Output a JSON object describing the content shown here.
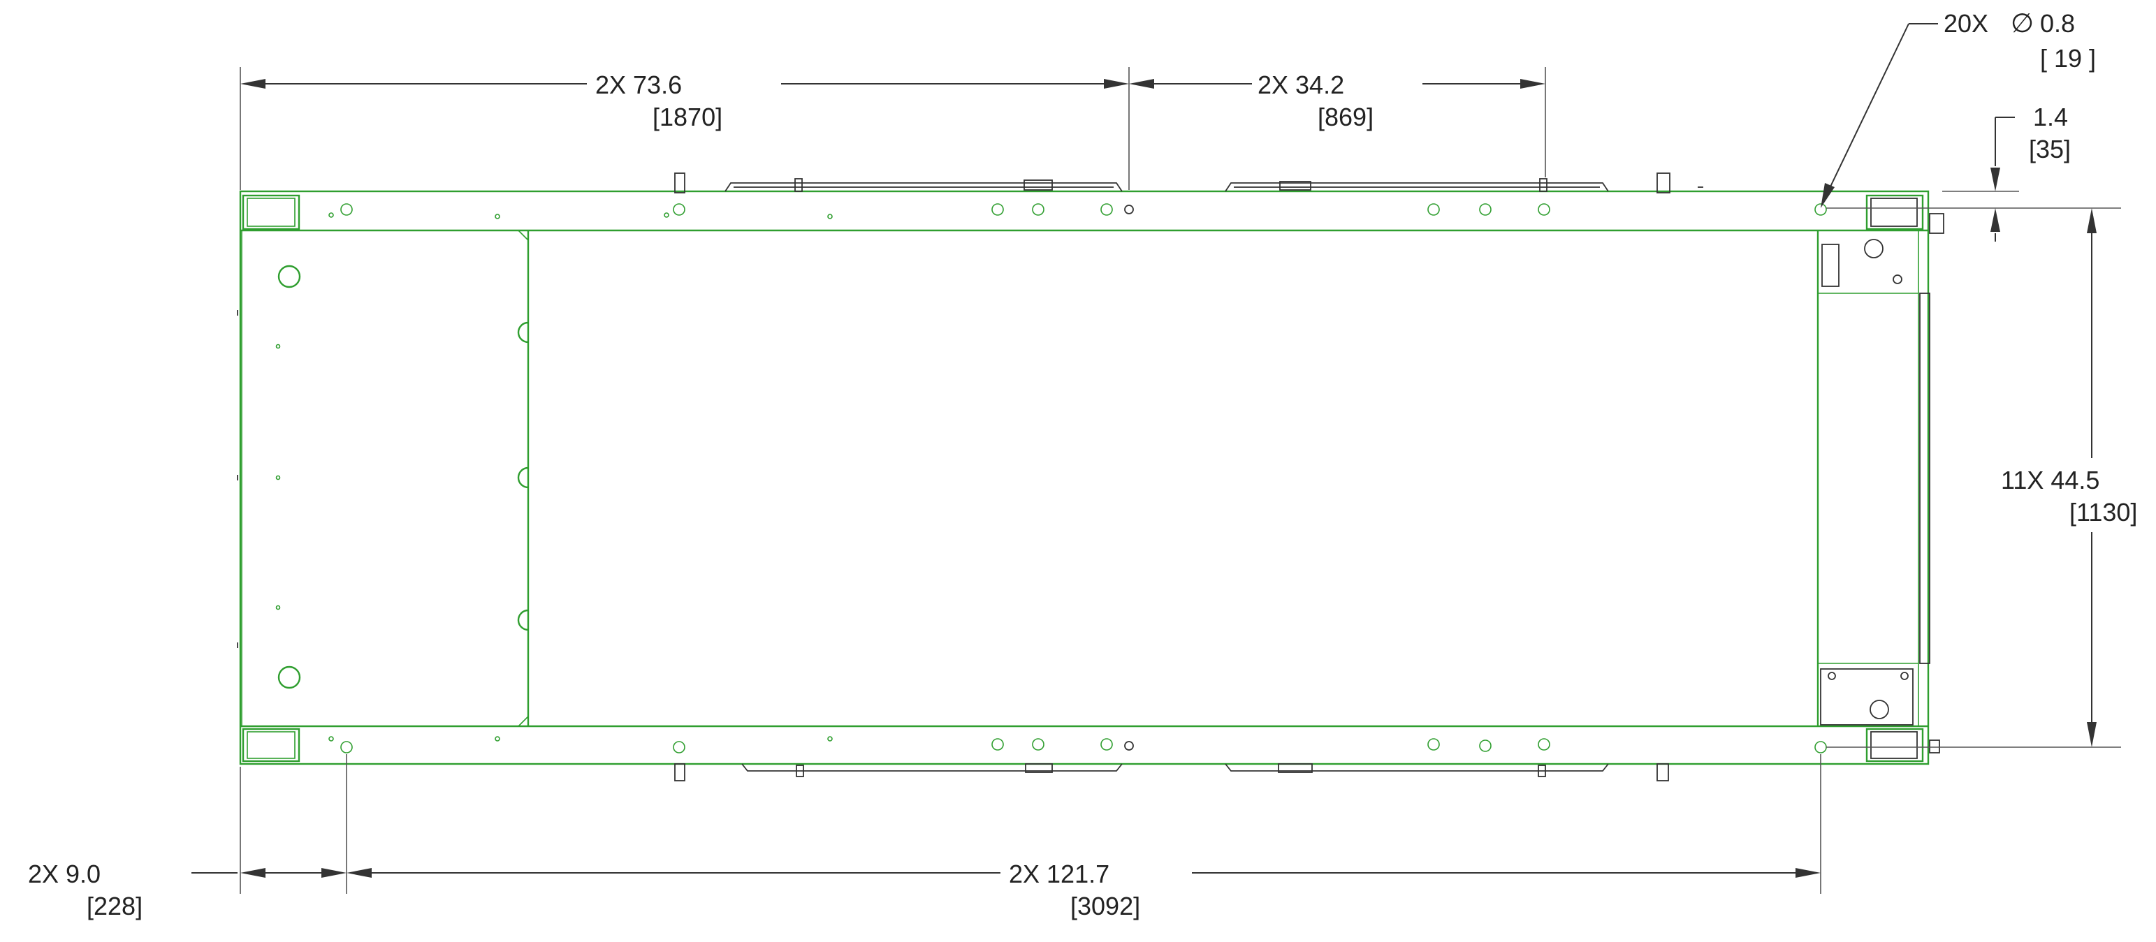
{
  "dimensions": {
    "holes": {
      "count": "20X",
      "symbol": "∅",
      "value": "0.8",
      "metric": "[ 19 ]"
    },
    "top_offset": {
      "value": "1.4",
      "metric": "[35]"
    },
    "top_left": {
      "value": "2X 73.6",
      "metric": "[1870]"
    },
    "top_right": {
      "value": "2X 34.2",
      "metric": "[869]"
    },
    "right_height": {
      "value": "11X 44.5",
      "metric": "[1130]"
    },
    "bottom_left": {
      "value": "2X 9.0",
      "metric": "[228]"
    },
    "bottom_main": {
      "value": "2X 121.7",
      "metric": "[3092]"
    }
  },
  "colors": {
    "frame": "#2f9e2f",
    "lines": "#333333"
  }
}
